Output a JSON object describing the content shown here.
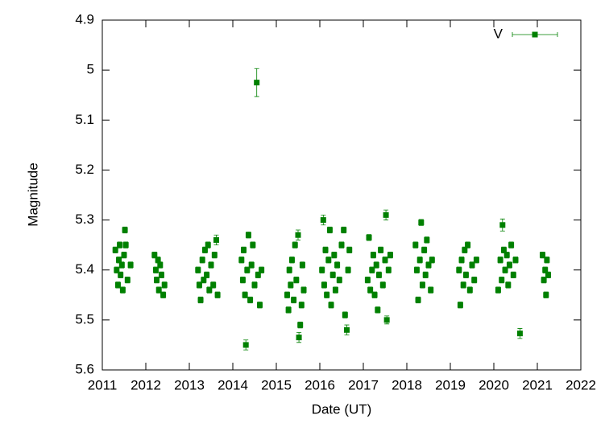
{
  "chart_data": {
    "type": "scatter",
    "x_label": "Date (UT)",
    "y_label": "Magnitude",
    "xlim": [
      2011,
      2022
    ],
    "xticks": [
      2011,
      2012,
      2013,
      2014,
      2015,
      2016,
      2017,
      2018,
      2019,
      2020,
      2021,
      2022
    ],
    "ylim": [
      4.9,
      5.6
    ],
    "yticks": [
      4.9,
      5,
      5.1,
      5.2,
      5.3,
      5.4,
      5.5,
      5.6
    ],
    "y_inverted": true,
    "legend": "top-right",
    "x": [
      2011.3,
      2011.33,
      2011.36,
      2011.38,
      2011.4,
      2011.42,
      2011.45,
      2011.47,
      2011.5,
      2011.52,
      2011.54,
      2011.58,
      2011.65,
      2012.2,
      2012.23,
      2012.25,
      2012.28,
      2012.3,
      2012.33,
      2012.36,
      2012.4,
      2012.43,
      2013.2,
      2013.23,
      2013.26,
      2013.3,
      2013.33,
      2013.36,
      2013.4,
      2013.43,
      2013.46,
      2013.5,
      2013.55,
      2013.58,
      2013.62,
      2013.65,
      2014.2,
      2014.23,
      2014.25,
      2014.28,
      2014.3,
      2014.33,
      2014.36,
      2014.4,
      2014.43,
      2014.46,
      2014.5,
      2014.55,
      2014.58,
      2014.62,
      2014.66,
      2015.25,
      2015.28,
      2015.3,
      2015.33,
      2015.36,
      2015.4,
      2015.43,
      2015.46,
      2015.5,
      2015.52,
      2015.55,
      2015.58,
      2015.6,
      2015.63,
      2016.05,
      2016.08,
      2016.1,
      2016.13,
      2016.16,
      2016.2,
      2016.23,
      2016.26,
      2016.3,
      2016.33,
      2016.36,
      2016.4,
      2016.45,
      2016.5,
      2016.55,
      2016.58,
      2016.62,
      2016.65,
      2016.68,
      2017.1,
      2017.13,
      2017.16,
      2017.2,
      2017.23,
      2017.26,
      2017.3,
      2017.33,
      2017.36,
      2017.4,
      2017.45,
      2017.5,
      2017.52,
      2017.54,
      2017.58,
      2017.62,
      2018.2,
      2018.23,
      2018.26,
      2018.3,
      2018.33,
      2018.36,
      2018.4,
      2018.43,
      2018.46,
      2018.5,
      2018.55,
      2018.58,
      2019.2,
      2019.23,
      2019.26,
      2019.3,
      2019.33,
      2019.36,
      2019.4,
      2019.45,
      2019.5,
      2019.55,
      2019.6,
      2020.1,
      2020.15,
      2020.18,
      2020.2,
      2020.23,
      2020.26,
      2020.3,
      2020.33,
      2020.36,
      2020.4,
      2020.45,
      2020.5,
      2020.6,
      2021.12,
      2021.15,
      2021.18,
      2021.2,
      2021.22,
      2021.25
    ],
    "series": [
      {
        "name": "V",
        "color": "#008000",
        "values": [
          5.36,
          5.4,
          5.43,
          5.38,
          5.35,
          5.41,
          5.39,
          5.44,
          5.37,
          5.32,
          5.35,
          5.42,
          5.39,
          5.37,
          5.4,
          5.42,
          5.38,
          5.44,
          5.39,
          5.41,
          5.45,
          5.43,
          5.4,
          5.43,
          5.46,
          5.38,
          5.42,
          5.36,
          5.41,
          5.35,
          5.44,
          5.39,
          5.43,
          5.37,
          5.34,
          5.45,
          5.38,
          5.42,
          5.36,
          5.45,
          5.55,
          5.4,
          5.33,
          5.46,
          5.39,
          5.35,
          5.43,
          5.025,
          5.41,
          5.47,
          5.4,
          5.45,
          5.48,
          5.4,
          5.43,
          5.38,
          5.46,
          5.35,
          5.42,
          5.33,
          5.535,
          5.51,
          5.47,
          5.39,
          5.44,
          5.4,
          5.3,
          5.43,
          5.36,
          5.45,
          5.38,
          5.32,
          5.47,
          5.41,
          5.37,
          5.44,
          5.39,
          5.42,
          5.35,
          5.32,
          5.49,
          5.52,
          5.4,
          5.36,
          5.42,
          5.335,
          5.44,
          5.4,
          5.37,
          5.45,
          5.39,
          5.48,
          5.41,
          5.36,
          5.43,
          5.38,
          5.29,
          5.5,
          5.4,
          5.37,
          5.35,
          5.4,
          5.46,
          5.38,
          5.305,
          5.43,
          5.36,
          5.41,
          5.34,
          5.39,
          5.44,
          5.38,
          5.4,
          5.47,
          5.38,
          5.43,
          5.36,
          5.41,
          5.35,
          5.44,
          5.39,
          5.42,
          5.38,
          5.44,
          5.38,
          5.42,
          5.31,
          5.36,
          5.4,
          5.37,
          5.43,
          5.39,
          5.35,
          5.41,
          5.38,
          5.527,
          5.37,
          5.42,
          5.4,
          5.45,
          5.38,
          5.41
        ],
        "errors": [
          0.006,
          0.006,
          0.006,
          0.006,
          0.006,
          0.006,
          0.006,
          0.006,
          0.006,
          0.006,
          0.006,
          0.006,
          0.006,
          0.006,
          0.006,
          0.006,
          0.006,
          0.006,
          0.006,
          0.006,
          0.006,
          0.006,
          0.006,
          0.006,
          0.006,
          0.006,
          0.006,
          0.006,
          0.006,
          0.006,
          0.006,
          0.006,
          0.006,
          0.006,
          0.01,
          0.006,
          0.006,
          0.006,
          0.006,
          0.006,
          0.01,
          0.006,
          0.006,
          0.006,
          0.006,
          0.006,
          0.006,
          0.028,
          0.006,
          0.006,
          0.006,
          0.006,
          0.006,
          0.006,
          0.006,
          0.006,
          0.006,
          0.006,
          0.006,
          0.01,
          0.01,
          0.006,
          0.006,
          0.006,
          0.006,
          0.006,
          0.01,
          0.006,
          0.006,
          0.006,
          0.006,
          0.006,
          0.006,
          0.006,
          0.006,
          0.006,
          0.006,
          0.006,
          0.006,
          0.006,
          0.006,
          0.01,
          0.006,
          0.006,
          0.006,
          0.006,
          0.006,
          0.006,
          0.006,
          0.006,
          0.006,
          0.006,
          0.006,
          0.006,
          0.006,
          0.006,
          0.01,
          0.008,
          0.006,
          0.006,
          0.006,
          0.006,
          0.006,
          0.006,
          0.006,
          0.006,
          0.006,
          0.006,
          0.006,
          0.006,
          0.006,
          0.006,
          0.006,
          0.006,
          0.006,
          0.006,
          0.006,
          0.006,
          0.006,
          0.006,
          0.006,
          0.006,
          0.006,
          0.006,
          0.006,
          0.006,
          0.012,
          0.006,
          0.006,
          0.006,
          0.006,
          0.006,
          0.006,
          0.006,
          0.006,
          0.01,
          0.006,
          0.006,
          0.006,
          0.006,
          0.006,
          0.006
        ]
      }
    ]
  }
}
